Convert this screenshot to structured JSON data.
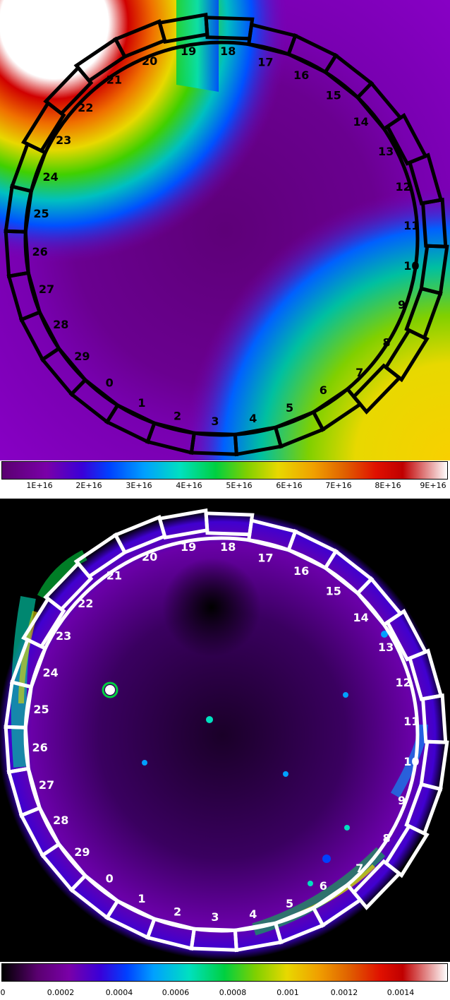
{
  "top": {
    "ring_labels": [
      "0",
      "1",
      "2",
      "3",
      "4",
      "5",
      "6",
      "7",
      "8",
      "9",
      "10",
      "11",
      "12",
      "13",
      "14",
      "15",
      "16",
      "17",
      "18",
      "19",
      "20",
      "21",
      "22",
      "23",
      "24",
      "25",
      "26",
      "27",
      "28",
      "29"
    ],
    "colorbar_ticks": [
      "1E+16",
      "2E+16",
      "3E+16",
      "4E+16",
      "5E+16",
      "6E+16",
      "7E+16",
      "8E+16",
      "9E+16"
    ]
  },
  "bottom": {
    "ring_labels": [
      "0",
      "1",
      "2",
      "3",
      "4",
      "5",
      "6",
      "7",
      "8",
      "9",
      "10",
      "11",
      "12",
      "13",
      "14",
      "15",
      "16",
      "17",
      "18",
      "19",
      "20",
      "21",
      "22",
      "23",
      "24",
      "25",
      "26",
      "27",
      "28",
      "29"
    ],
    "colorbar_ticks": [
      "0",
      "0.0002",
      "0.0004",
      "0.0006",
      "0.0008",
      "0.001",
      "0.0012",
      "0.0014"
    ]
  },
  "colors": {
    "rainbow": [
      "#5a0070",
      "#7a00a8",
      "#3a00d8",
      "#0040ff",
      "#00a0ff",
      "#00e0c0",
      "#00d040",
      "#80d000",
      "#e8d800",
      "#f0a000",
      "#e06000",
      "#e01000",
      "#c00000",
      "#ffffff"
    ]
  }
}
